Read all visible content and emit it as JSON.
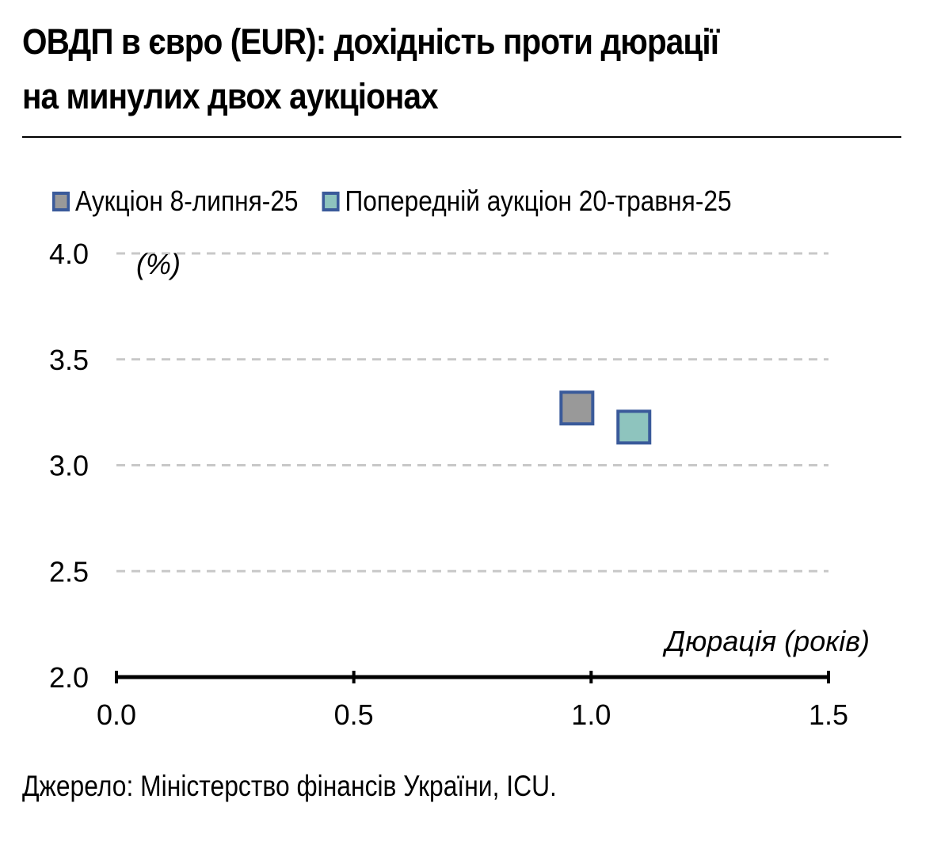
{
  "title_line1": "ОВДП в євро (EUR): дохідність проти дюрації",
  "title_line2": "на минулих двох аукціонах",
  "source": "Джерело: Міністерство фінансів України, ICU.",
  "colors": {
    "series1_fill": "#999999",
    "series2_fill": "#8ec4be",
    "marker_border": "#3a5a9a",
    "axis": "#000000",
    "grid": "#c8c8c8"
  },
  "chart_data": {
    "type": "scatter",
    "title": "ОВДП в євро (EUR): дохідність проти дюрації на минулих двох аукціонах",
    "xlabel": "Дюрація (років)",
    "ylabel": "(%)",
    "xlim": [
      0.0,
      1.5
    ],
    "ylim": [
      2.0,
      4.0
    ],
    "x_ticks": [
      "0.0",
      "0.5",
      "1.0",
      "1.5"
    ],
    "y_ticks": [
      "2.0",
      "2.5",
      "3.0",
      "3.5",
      "4.0"
    ],
    "grid": "horizontal dashed",
    "legend_position": "top",
    "series": [
      {
        "name": "Аукціон 8-липня-25",
        "marker": "square",
        "points": [
          {
            "x": 0.97,
            "y": 3.27
          }
        ]
      },
      {
        "name": "Попередній аукціон 20-травня-25",
        "marker": "square",
        "points": [
          {
            "x": 1.09,
            "y": 3.18
          }
        ]
      }
    ]
  }
}
